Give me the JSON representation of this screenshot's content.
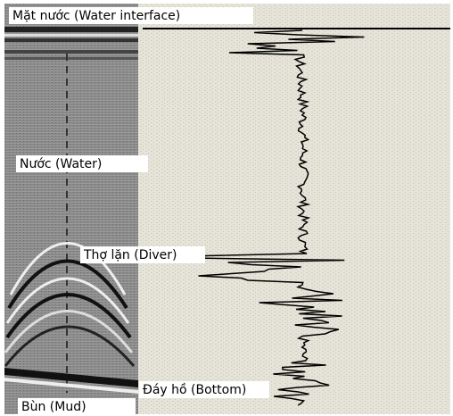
{
  "labels": {
    "water_interface": "Mặt nước (Water interface)",
    "water": "Nước (Water)",
    "diver": "Thợ lặn (Diver)",
    "bottom": "Đáy hồ (Bottom)",
    "mud": "Bùn (Mud)"
  }
}
